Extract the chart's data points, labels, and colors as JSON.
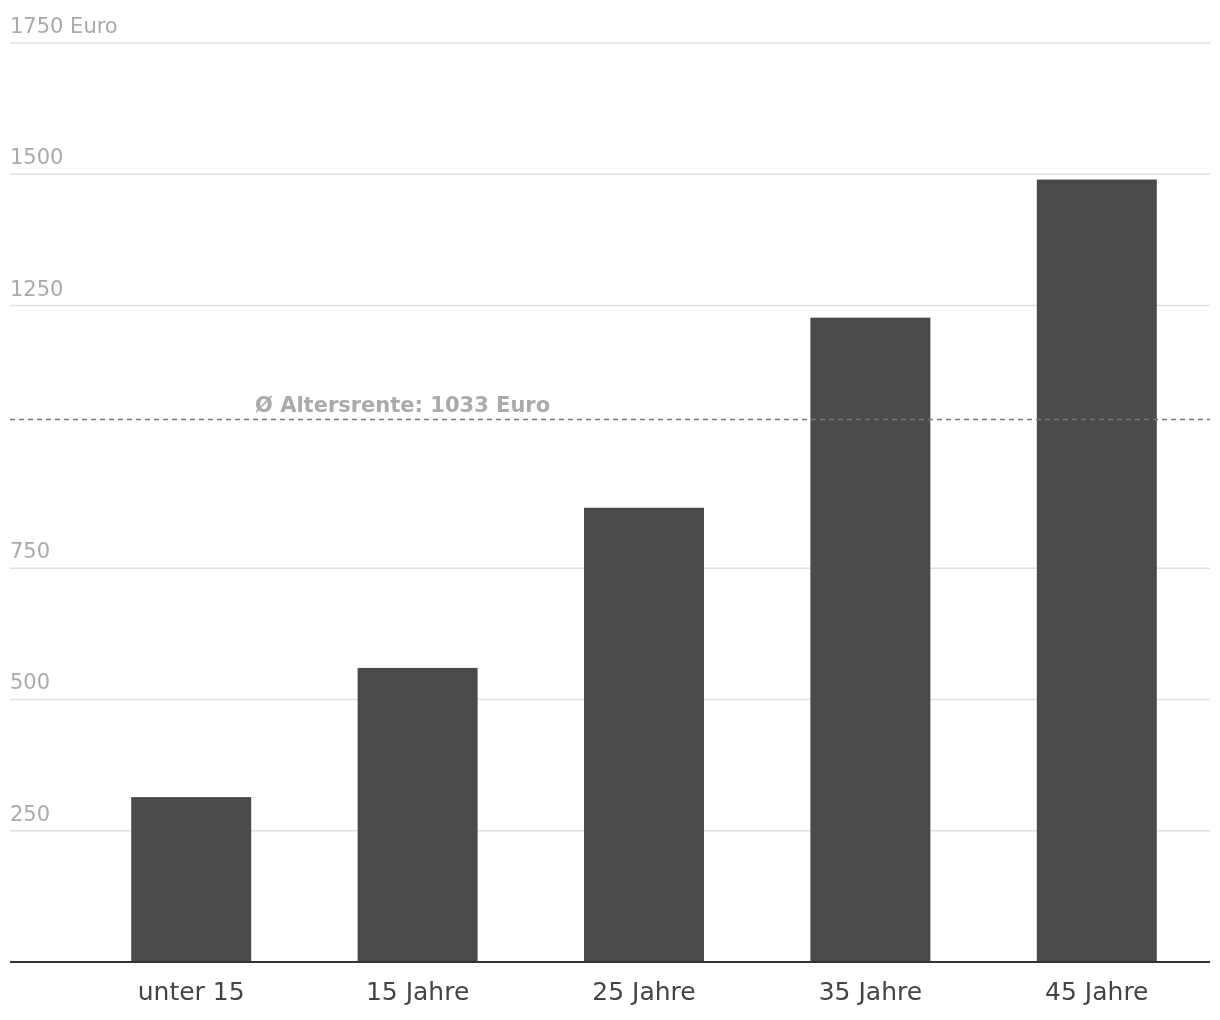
{
  "chart_data": {
    "type": "bar",
    "categories": [
      "unter 15",
      "15 Jahre",
      "25 Jahre",
      "35 Jahre",
      "45 Jahre"
    ],
    "values": [
      314,
      560,
      865,
      1227,
      1490
    ],
    "color": "#4a4a4a",
    "ylim": [
      0,
      1750
    ],
    "yticks": [
      250,
      500,
      750,
      1250,
      1500,
      {
        "value": 1750,
        "label": "1750 Euro"
      }
    ],
    "grid": "y",
    "ref_lines": [
      {
        "axis": "y",
        "value": 1033,
        "label": "Ø Altersrente: 1033 Euro",
        "line_style": "dashed",
        "color": "#777777"
      }
    ]
  }
}
